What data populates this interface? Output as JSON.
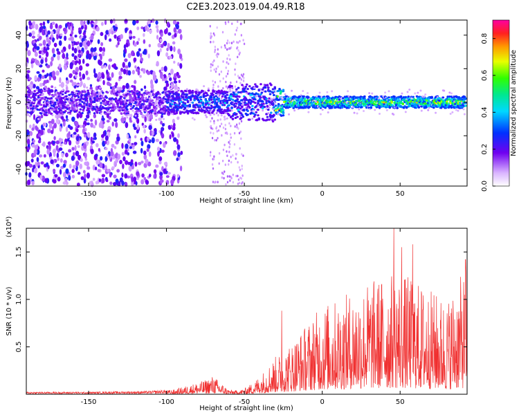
{
  "title": "C2E3.2023.019.04.49.R18",
  "colors": {
    "snr_line": "#f03030",
    "spectrum_low": "#e6ccff",
    "spectrum_mid": "#7b00f0",
    "spectrum_high": "#00e5c0"
  },
  "chart_data": [
    {
      "type": "heatmap",
      "xlabel": "Height of straight line (km)",
      "ylabel": "Frequency (Hz)",
      "xlim": [
        -190,
        93
      ],
      "ylim": [
        -50,
        49
      ],
      "xticks": [
        -150,
        -100,
        -50,
        0,
        50
      ],
      "xtick_labels": [
        "-150",
        "-100",
        "-50",
        "0",
        "50"
      ],
      "yticks": [
        -40,
        -20,
        0,
        20,
        40
      ],
      "ytick_labels": [
        "-40",
        "-20",
        "0",
        "20",
        "40"
      ],
      "grid": false,
      "colorbar": {
        "label": "Normalized spectral amplitude",
        "range": [
          0,
          0.9
        ],
        "ticks": [
          0.0,
          0.2,
          0.4,
          0.6,
          0.8
        ],
        "tick_labels": [
          "0.0",
          "0.2",
          "0.4",
          "0.6",
          "0.8"
        ]
      },
      "description_of_pattern": {
        "broadband_noise_region_km": [
          -190,
          -100
        ],
        "central_band_center_hz": 0,
        "peak_amplitude_region_km": [
          -30,
          90
        ]
      }
    },
    {
      "type": "line",
      "xlabel": "Height of straight line (km)",
      "ylabel": "SNR (10 * v/v)",
      "scale_note": "(x10⁴)",
      "xlim": [
        -190,
        93
      ],
      "ylim": [
        0,
        1.75
      ],
      "xticks": [
        -150,
        -100,
        -50,
        0,
        50
      ],
      "xtick_labels": [
        "-150",
        "-100",
        "-50",
        "0",
        "50"
      ],
      "yticks": [
        0.5,
        1.0,
        1.5
      ],
      "ytick_labels": [
        "0.5",
        "1.0",
        "1.5"
      ],
      "grid": false,
      "envelope": {
        "x": [
          -190,
          -150,
          -110,
          -95,
          -85,
          -75,
          -70,
          -65,
          -60,
          -55,
          -50,
          -45,
          -40,
          -35,
          -30,
          -25,
          -20,
          -15,
          -10,
          -5,
          0,
          10,
          20,
          30,
          40,
          50,
          60,
          70,
          80,
          93
        ],
        "y": [
          0.02,
          0.02,
          0.03,
          0.05,
          0.1,
          0.15,
          0.2,
          0.12,
          0.05,
          0.04,
          0.06,
          0.12,
          0.2,
          0.3,
          0.4,
          0.45,
          0.55,
          0.65,
          0.75,
          0.85,
          0.95,
          1.0,
          1.1,
          1.2,
          1.25,
          1.3,
          1.2,
          1.1,
          1.0,
          1.35
        ]
      },
      "peaks": [
        {
          "x": -26,
          "y": 0.88
        },
        {
          "x": 46,
          "y": 1.75
        },
        {
          "x": 58,
          "y": 1.58
        },
        {
          "x": 51,
          "y": 1.55
        },
        {
          "x": 92,
          "y": 1.42
        }
      ]
    }
  ]
}
